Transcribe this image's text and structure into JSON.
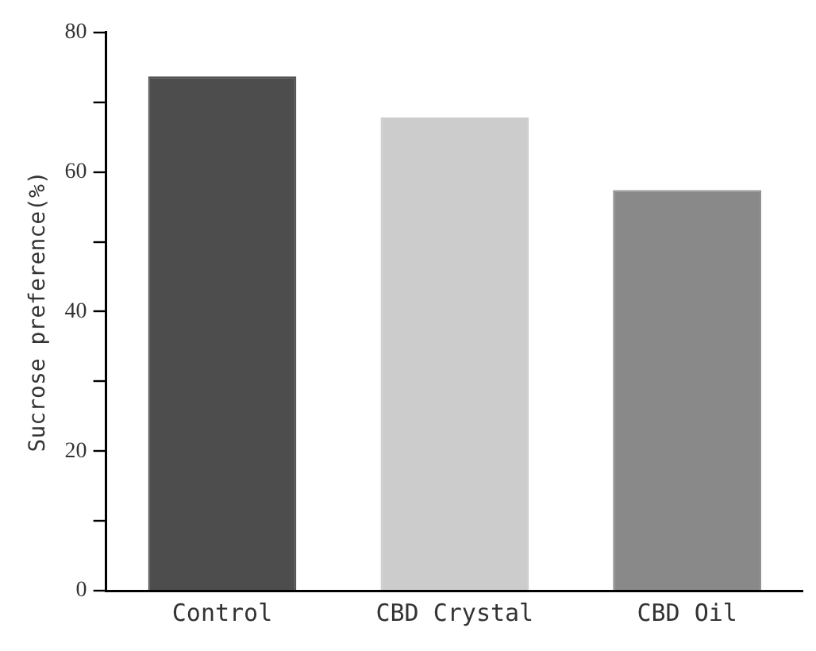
{
  "chart_data": {
    "type": "bar",
    "ylabel": "Sucrose preference(%)",
    "categories": [
      "Control",
      "CBD Crystal",
      "CBD Oil"
    ],
    "values": [
      73.7,
      67.8,
      57.4
    ],
    "colors": [
      "#4d4d4d",
      "#cccccc",
      "#898989"
    ],
    "ylim": [
      0,
      80
    ],
    "yticks": [
      0,
      {
        "value": 10,
        "label": null
      },
      20,
      {
        "value": 30,
        "label": null
      },
      40,
      {
        "value": 50,
        "label": null
      },
      60,
      {
        "value": 70,
        "label": null
      },
      80
    ],
    "grid": false,
    "legend": false
  }
}
